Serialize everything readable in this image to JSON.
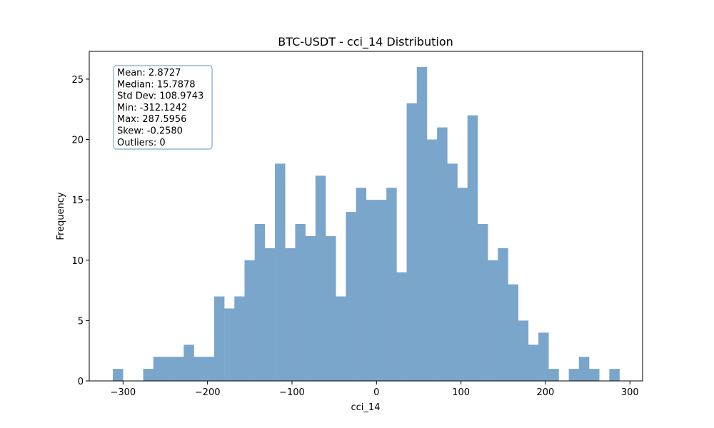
{
  "chart_data": {
    "type": "bar",
    "title": "BTC-USDT - cci_14 Distribution",
    "xlabel": "cci_14",
    "ylabel": "Frequency",
    "xlim": [
      -340,
      315
    ],
    "ylim": [
      0,
      27.3
    ],
    "x_ticks": [
      -300,
      -200,
      -100,
      0,
      100,
      200,
      300
    ],
    "y_ticks": [
      0,
      5,
      10,
      15,
      20,
      25
    ],
    "bar_color": "#7ba6cb",
    "bin_min": -312.1242,
    "bin_max": 287.5956,
    "counts": [
      1,
      0,
      0,
      1,
      2,
      2,
      2,
      3,
      2,
      2,
      7,
      6,
      7,
      10,
      13,
      11,
      18,
      11,
      13,
      12,
      17,
      12,
      7,
      14,
      16,
      15,
      15,
      16,
      9,
      23,
      26,
      20,
      21,
      18,
      16,
      22,
      13,
      10,
      11,
      8,
      5,
      3,
      4,
      1,
      0,
      1,
      2,
      1,
      0,
      1
    ],
    "grid": false,
    "stats_box": {
      "location": "top-left",
      "lines": [
        "Mean: 2.8727",
        "Median: 15.7878",
        "Std Dev: 108.9743",
        "Min: -312.1242",
        "Max: 287.5956",
        "Skew: -0.2580",
        "Outliers: 0"
      ]
    }
  }
}
